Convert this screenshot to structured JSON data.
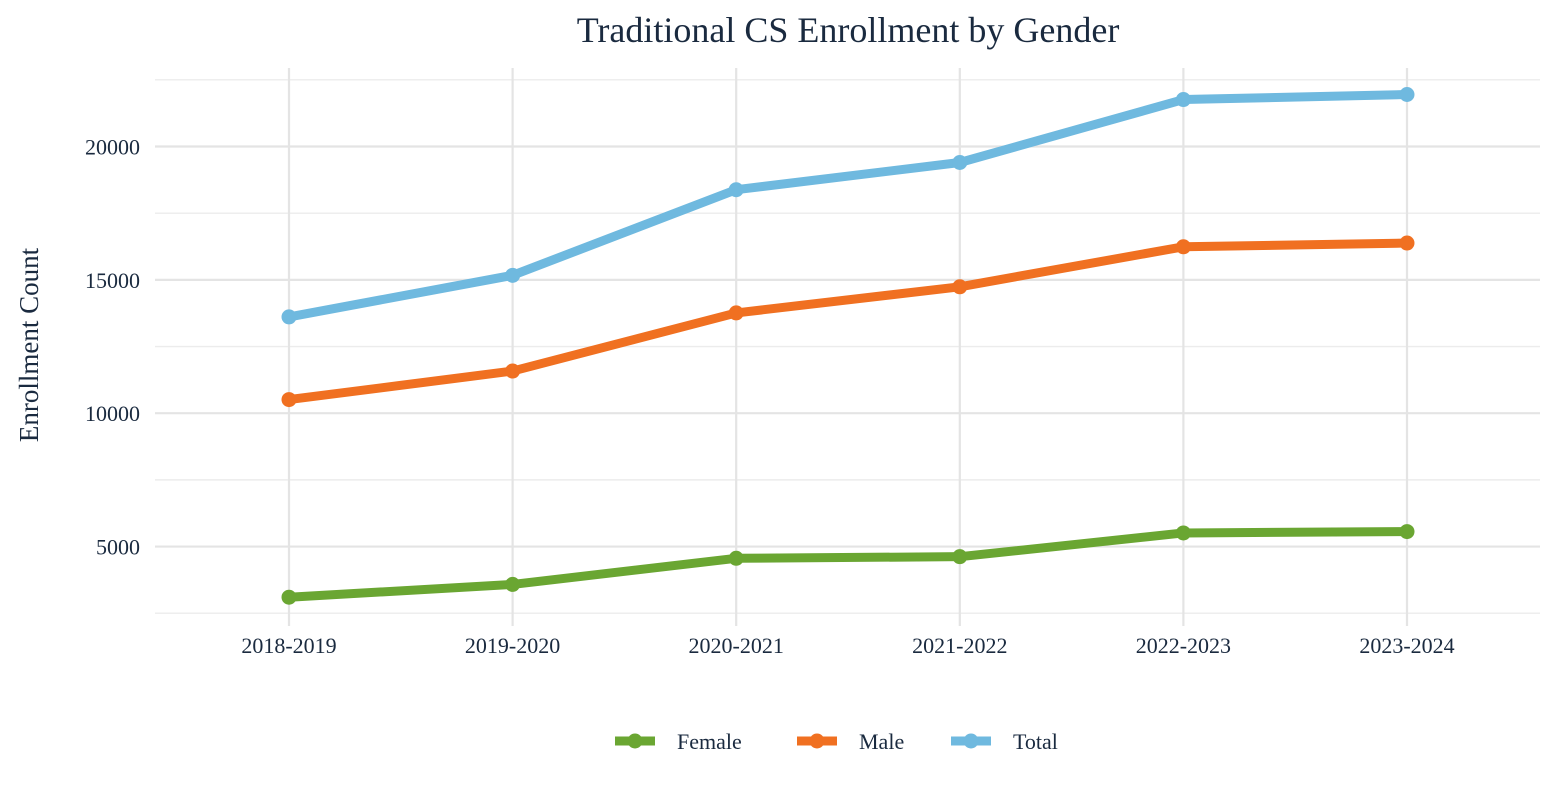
{
  "chart_data": {
    "type": "line",
    "title": "Traditional CS Enrollment by Gender",
    "xlabel": "",
    "ylabel": "Enrollment Count",
    "categories": [
      "2018-2019",
      "2019-2020",
      "2020-2021",
      "2021-2022",
      "2022-2023",
      "2023-2024"
    ],
    "series": [
      {
        "name": "Female",
        "color": "#6aa632",
        "values": [
          3100,
          3580,
          4560,
          4620,
          5510,
          5560
        ]
      },
      {
        "name": "Male",
        "color": "#f07021",
        "values": [
          10510,
          11580,
          13760,
          14740,
          16240,
          16380
        ]
      },
      {
        "name": "Total",
        "color": "#6fb9df",
        "values": [
          13610,
          15170,
          18380,
          19400,
          21760,
          21950
        ]
      }
    ],
    "ylim": [
      2500,
      25000
    ],
    "yticks": [
      5000,
      10000,
      15000,
      20000
    ],
    "grid": true,
    "legend_position": "bottom"
  }
}
